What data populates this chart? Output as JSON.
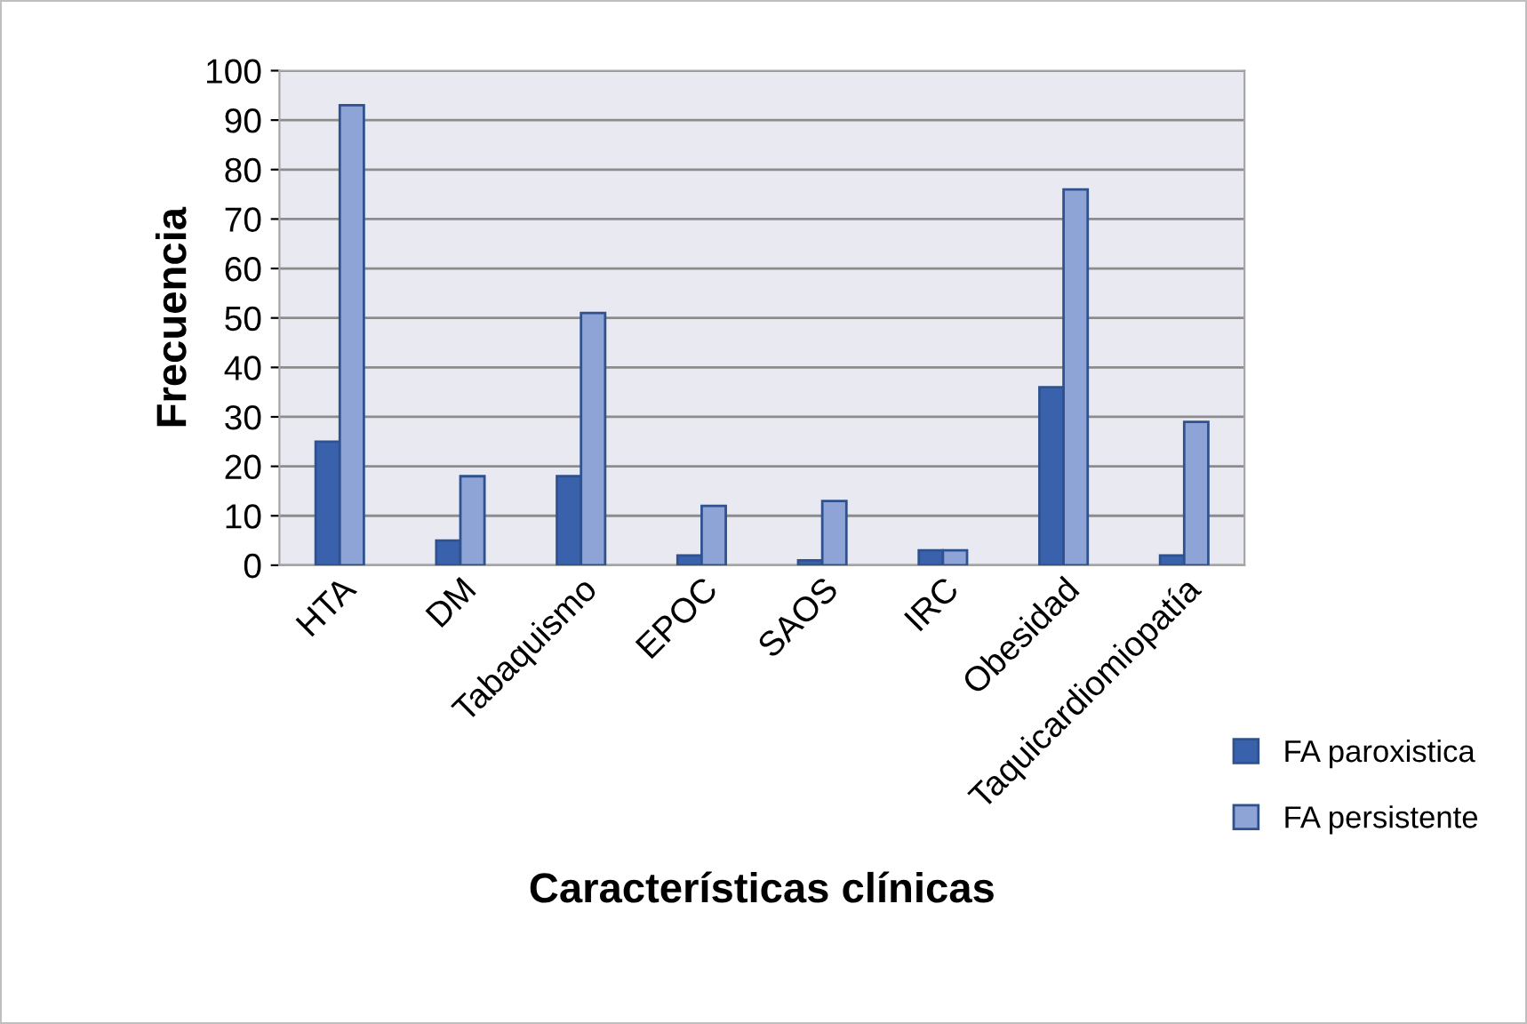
{
  "chart_data": {
    "type": "bar",
    "xlabel": "Características clínicas",
    "ylabel": "Frecuencia",
    "categories": [
      "HTA",
      "DM",
      "Tabaquismo",
      "EPOC",
      "SAOS",
      "IRC",
      "Obesidad",
      "Taquicardiomiopatía"
    ],
    "series": [
      {
        "name": "FA paroxistica",
        "color": "#3a62ac",
        "values": [
          25,
          5,
          18,
          2,
          1,
          3,
          36,
          2
        ]
      },
      {
        "name": "FA persistente",
        "color": "#8ea4d6",
        "values": [
          93,
          18,
          51,
          12,
          13,
          3,
          76,
          29
        ]
      }
    ],
    "ylim": [
      0,
      100
    ],
    "yticks": [
      0,
      10,
      20,
      30,
      40,
      50,
      60,
      70,
      80,
      90,
      100
    ],
    "grid": "y",
    "legend": "bottom right"
  }
}
